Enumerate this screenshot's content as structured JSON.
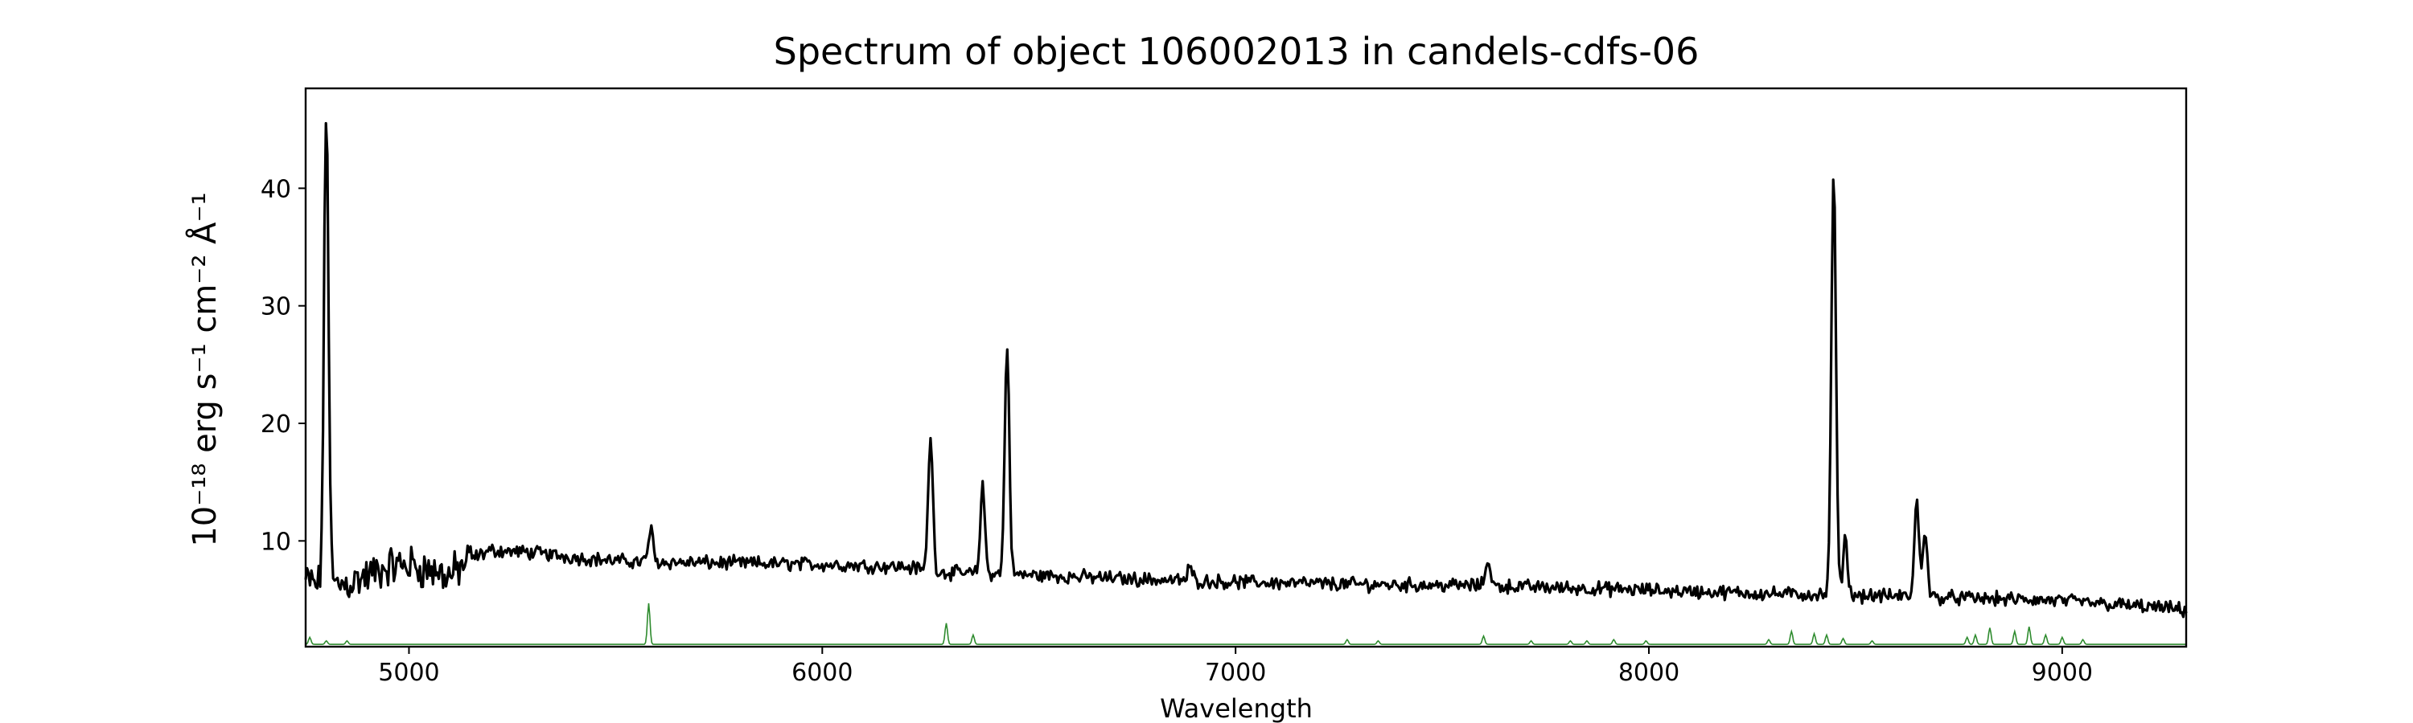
{
  "chart_data": {
    "type": "line",
    "title": "Spectrum of object 106002013 in candels-cdfs-06",
    "xlabel": "Wavelength",
    "ylabel": "10⁻¹⁸ erg s⁻¹ cm⁻² Å⁻¹",
    "xlim": [
      4750,
      9300
    ],
    "ylim": [
      1.0,
      48.5
    ],
    "xticks": [
      5000,
      6000,
      7000,
      8000,
      9000
    ],
    "yticks": [
      10,
      20,
      30,
      40
    ],
    "grid": false,
    "legend": "none",
    "series": [
      {
        "role": "flux",
        "color": "#000000",
        "anchors": [
          [
            4750,
            6.6
          ],
          [
            4800,
            6.0
          ],
          [
            4850,
            6.4
          ],
          [
            4900,
            7.0
          ],
          [
            4950,
            7.8
          ],
          [
            5000,
            8.0
          ],
          [
            5050,
            7.5
          ],
          [
            5100,
            7.0
          ],
          [
            5150,
            8.5
          ],
          [
            5200,
            9.2
          ],
          [
            5300,
            9.0
          ],
          [
            5400,
            8.6
          ],
          [
            5500,
            8.3
          ],
          [
            5600,
            8.2
          ],
          [
            5800,
            8.1
          ],
          [
            6000,
            8.0
          ],
          [
            6200,
            7.8
          ],
          [
            6300,
            7.3
          ],
          [
            6500,
            7.1
          ],
          [
            6800,
            6.7
          ],
          [
            7000,
            6.5
          ],
          [
            7300,
            6.3
          ],
          [
            7600,
            6.2
          ],
          [
            8000,
            5.8
          ],
          [
            8300,
            5.5
          ],
          [
            8600,
            5.3
          ],
          [
            8800,
            5.1
          ],
          [
            9000,
            4.9
          ],
          [
            9200,
            4.4
          ],
          [
            9300,
            4.1
          ]
        ],
        "emission_lines": [
          {
            "x": 4800,
            "peak": 46.5
          },
          {
            "x": 5585,
            "peak": 11.0
          },
          {
            "x": 6262,
            "peak": 19.0
          },
          {
            "x": 6388,
            "peak": 14.6
          },
          {
            "x": 6447,
            "peak": 26.7
          },
          {
            "x": 6890,
            "peak": 7.8
          },
          {
            "x": 7610,
            "peak": 8.5
          },
          {
            "x": 8447,
            "peak": 41.7
          },
          {
            "x": 8475,
            "peak": 10.3
          },
          {
            "x": 8648,
            "peak": 13.3
          },
          {
            "x": 8668,
            "peak": 11.0
          }
        ]
      },
      {
        "role": "error",
        "color": "#2e8b2e",
        "baseline": 1.2,
        "spikes": [
          {
            "x": 4760,
            "peak": 1.8
          },
          {
            "x": 4800,
            "peak": 1.5
          },
          {
            "x": 4850,
            "peak": 1.5
          },
          {
            "x": 5580,
            "peak": 4.7
          },
          {
            "x": 6300,
            "peak": 3.0
          },
          {
            "x": 6365,
            "peak": 2.0
          },
          {
            "x": 7270,
            "peak": 1.6
          },
          {
            "x": 7345,
            "peak": 1.5
          },
          {
            "x": 7600,
            "peak": 1.9
          },
          {
            "x": 7715,
            "peak": 1.5
          },
          {
            "x": 7810,
            "peak": 1.5
          },
          {
            "x": 7850,
            "peak": 1.5
          },
          {
            "x": 7915,
            "peak": 1.6
          },
          {
            "x": 7993,
            "peak": 1.5
          },
          {
            "x": 8290,
            "peak": 1.6
          },
          {
            "x": 8345,
            "peak": 2.3
          },
          {
            "x": 8400,
            "peak": 2.1
          },
          {
            "x": 8430,
            "peak": 2.0
          },
          {
            "x": 8470,
            "peak": 1.7
          },
          {
            "x": 8540,
            "peak": 1.5
          },
          {
            "x": 8770,
            "peak": 1.8
          },
          {
            "x": 8790,
            "peak": 2.0
          },
          {
            "x": 8825,
            "peak": 2.6
          },
          {
            "x": 8885,
            "peak": 2.3
          },
          {
            "x": 8920,
            "peak": 2.7
          },
          {
            "x": 8960,
            "peak": 2.0
          },
          {
            "x": 9000,
            "peak": 1.8
          },
          {
            "x": 9050,
            "peak": 1.6
          }
        ]
      }
    ]
  }
}
